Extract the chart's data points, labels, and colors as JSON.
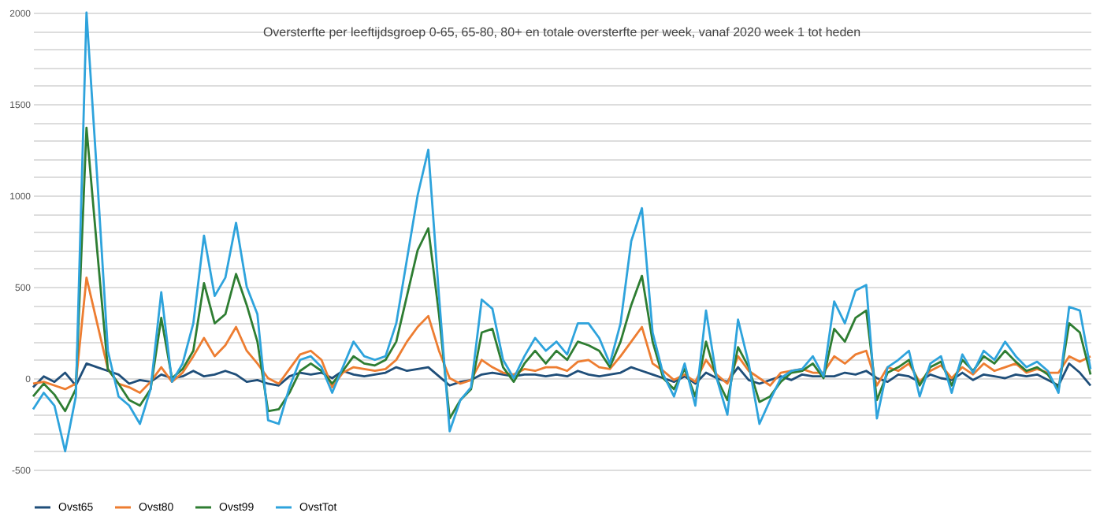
{
  "chart_data": {
    "type": "line",
    "title": "Oversterfte per leeftijdsgroep 0-65, 65-80, 80+ en totale oversterfte per week, vanaf 2020 week 1 tot heden",
    "categories": [
      null,
      null,
      null,
      null,
      null,
      null,
      null,
      null,
      null,
      null,
      null,
      null,
      null,
      null,
      null,
      null,
      null,
      null,
      null,
      null,
      null,
      null,
      null,
      null,
      null,
      null,
      null,
      null,
      null,
      null,
      null,
      null,
      null,
      null,
      null,
      null,
      null,
      null,
      null,
      null,
      null,
      null,
      null,
      null,
      null,
      null,
      null,
      null,
      null,
      null,
      null,
      null,
      null,
      null,
      null,
      null,
      null,
      null,
      null,
      null,
      null,
      null,
      null,
      null,
      null,
      null,
      null,
      null,
      null,
      null,
      null,
      null,
      null,
      null,
      null,
      null,
      null,
      null,
      null,
      null,
      null,
      null,
      null,
      null,
      null,
      null,
      null,
      null,
      null,
      null,
      null,
      null,
      null,
      null,
      null,
      null,
      null,
      null,
      null,
      null
    ],
    "series": [
      {
        "name": "Ovst65",
        "color": "#1f4e79",
        "values": [
          -50,
          10,
          -20,
          30,
          -40,
          80,
          60,
          40,
          20,
          -30,
          -10,
          -20,
          20,
          0,
          10,
          40,
          10,
          20,
          40,
          20,
          -20,
          -10,
          -30,
          -40,
          10,
          30,
          20,
          30,
          0,
          40,
          20,
          10,
          20,
          30,
          60,
          40,
          50,
          60,
          10,
          -40,
          -20,
          -10,
          20,
          30,
          20,
          10,
          20,
          20,
          10,
          20,
          10,
          40,
          20,
          10,
          20,
          30,
          60,
          40,
          20,
          0,
          -20,
          10,
          -30,
          30,
          0,
          -20,
          60,
          -10,
          -30,
          -10,
          10,
          -10,
          20,
          10,
          10,
          10,
          30,
          20,
          40,
          0,
          -20,
          20,
          10,
          -20,
          20,
          0,
          -10,
          30,
          -10,
          20,
          10,
          0,
          20,
          10,
          20,
          -10,
          -40,
          80,
          30,
          -40
        ]
      },
      {
        "name": "Ovst80",
        "color": "#ed7d31",
        "values": [
          -30,
          -20,
          -40,
          -60,
          -30,
          550,
          300,
          50,
          -30,
          -50,
          -80,
          -20,
          60,
          -20,
          30,
          120,
          220,
          120,
          180,
          280,
          150,
          80,
          0,
          -30,
          50,
          130,
          150,
          100,
          -50,
          30,
          60,
          50,
          40,
          50,
          100,
          200,
          280,
          340,
          150,
          0,
          -30,
          -10,
          100,
          60,
          30,
          20,
          50,
          40,
          60,
          60,
          40,
          90,
          100,
          60,
          50,
          120,
          200,
          280,
          80,
          40,
          -10,
          20,
          -20,
          100,
          20,
          -30,
          120,
          40,
          0,
          -40,
          30,
          40,
          50,
          30,
          30,
          120,
          80,
          130,
          150,
          -40,
          60,
          40,
          80,
          -20,
          40,
          70,
          0,
          60,
          20,
          80,
          40,
          60,
          80,
          30,
          50,
          30,
          30,
          120,
          90,
          120
        ]
      },
      {
        "name": "Ovst99",
        "color": "#2e7d32",
        "values": [
          -100,
          -30,
          -90,
          -180,
          -60,
          1370,
          700,
          50,
          -30,
          -120,
          -150,
          -60,
          330,
          0,
          50,
          150,
          520,
          300,
          350,
          570,
          400,
          200,
          -180,
          -170,
          -80,
          40,
          80,
          40,
          -30,
          40,
          120,
          80,
          70,
          100,
          200,
          450,
          700,
          820,
          350,
          -220,
          -120,
          -60,
          250,
          270,
          60,
          -20,
          80,
          150,
          80,
          150,
          100,
          200,
          180,
          150,
          60,
          200,
          400,
          560,
          200,
          0,
          -60,
          50,
          -100,
          200,
          0,
          -120,
          170,
          60,
          -130,
          -100,
          -20,
          30,
          40,
          80,
          0,
          270,
          200,
          330,
          370,
          -120,
          30,
          60,
          100,
          -40,
          60,
          90,
          -40,
          100,
          40,
          120,
          80,
          150,
          90,
          40,
          60,
          20,
          -60,
          300,
          250,
          20
        ]
      },
      {
        "name": "OvstTot",
        "color": "#2ea3dc",
        "values": [
          -170,
          -80,
          -150,
          -400,
          -100,
          2000,
          1100,
          150,
          -100,
          -150,
          -250,
          -60,
          470,
          -20,
          80,
          300,
          780,
          450,
          550,
          850,
          500,
          350,
          -230,
          -250,
          -50,
          100,
          120,
          60,
          -80,
          60,
          200,
          120,
          100,
          120,
          300,
          650,
          1000,
          1250,
          450,
          -290,
          -120,
          -50,
          430,
          380,
          100,
          0,
          120,
          220,
          150,
          200,
          130,
          300,
          300,
          220,
          80,
          300,
          750,
          930,
          250,
          20,
          -100,
          80,
          -150,
          370,
          0,
          -200,
          320,
          80,
          -250,
          -120,
          0,
          40,
          50,
          120,
          10,
          420,
          300,
          480,
          510,
          -220,
          60,
          100,
          150,
          -100,
          80,
          120,
          -80,
          130,
          30,
          150,
          100,
          200,
          120,
          60,
          90,
          40,
          -80,
          390,
          370,
          50
        ]
      }
    ],
    "ylim": [
      -500,
      2000
    ],
    "yticks": [
      -500,
      {
        "value": -400,
        "label": null
      },
      {
        "value": -300,
        "label": null
      },
      {
        "value": -200,
        "label": null
      },
      {
        "value": -100,
        "label": null
      },
      0,
      {
        "value": 100,
        "label": null
      },
      {
        "value": 200,
        "label": null
      },
      {
        "value": 300,
        "label": null
      },
      {
        "value": 400,
        "label": null
      },
      500,
      {
        "value": 600,
        "label": null
      },
      {
        "value": 700,
        "label": null
      },
      {
        "value": 800,
        "label": null
      },
      {
        "value": 900,
        "label": null
      },
      1000,
      {
        "value": 1100,
        "label": null
      },
      {
        "value": 1200,
        "label": null
      },
      {
        "value": 1300,
        "label": null
      },
      {
        "value": 1400,
        "label": null
      },
      1500,
      {
        "value": 1600,
        "label": null
      },
      {
        "value": 1700,
        "label": null
      },
      {
        "value": 1800,
        "label": null
      },
      {
        "value": 1900,
        "label": null
      },
      2000
    ],
    "grid": "y",
    "legend": "bottom",
    "tick_labels": "y",
    "marker": "none",
    "line_style": "solid"
  }
}
